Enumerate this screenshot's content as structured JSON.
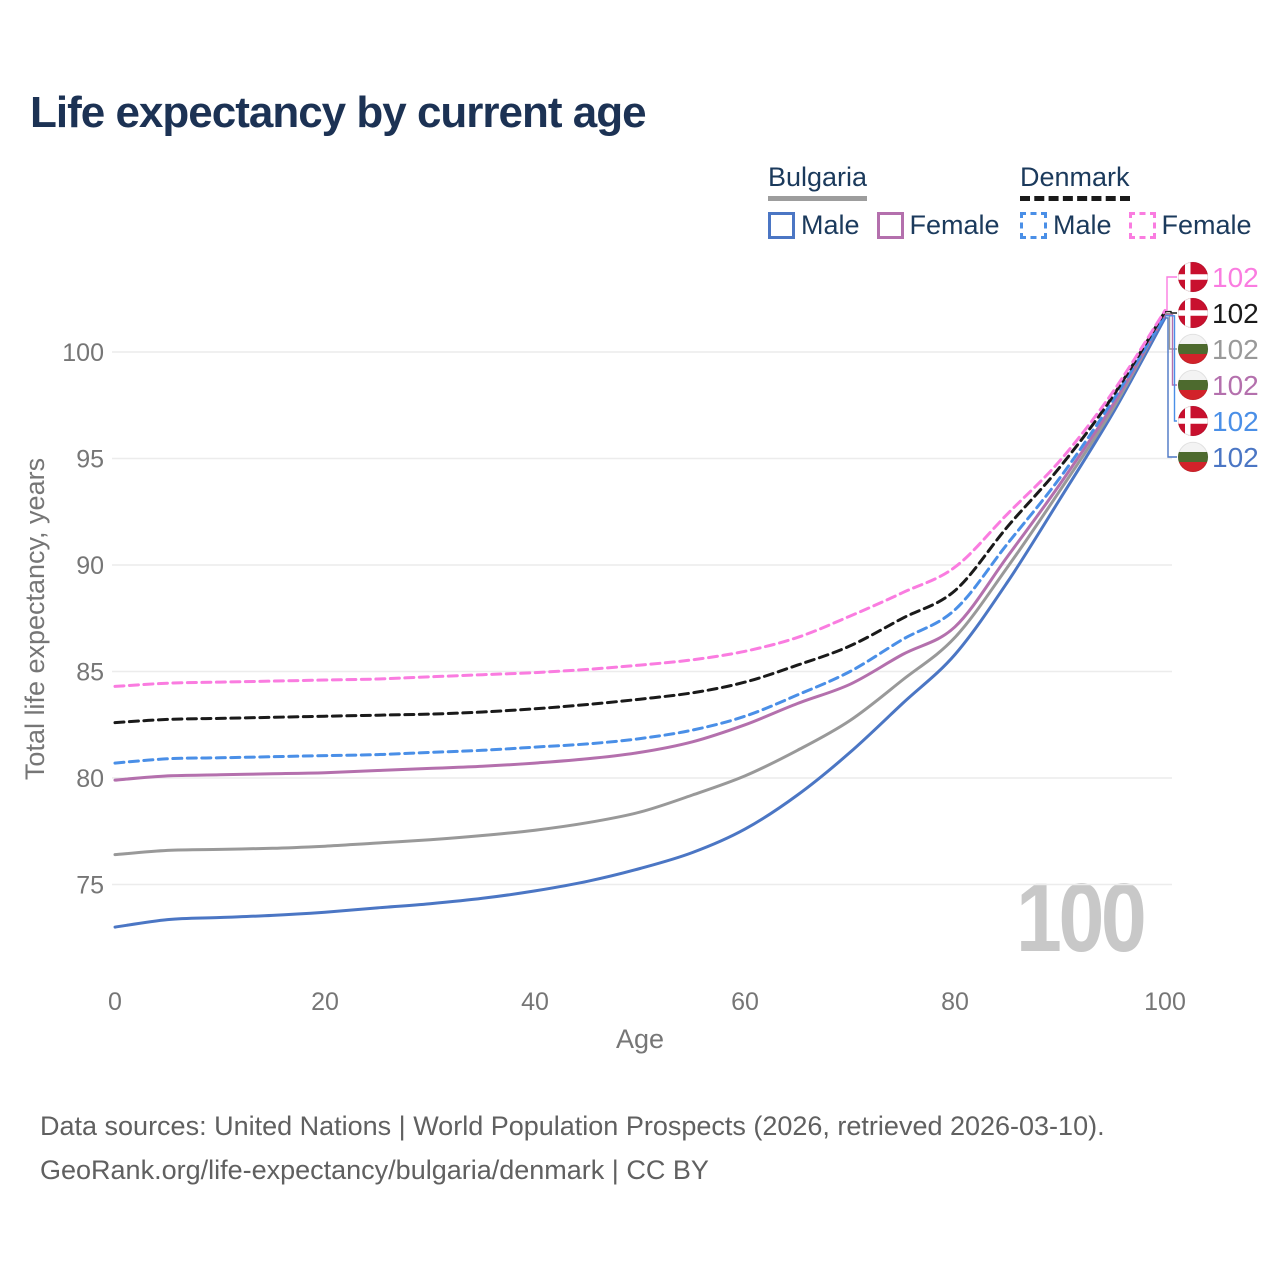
{
  "title": "Life expectancy by current age",
  "legend": {
    "groups": [
      {
        "name": "Bulgaria",
        "line_style": "solid",
        "underline_color": "#9d9d9d",
        "items": [
          {
            "label": "Male",
            "color": "#4b76c4"
          },
          {
            "label": "Female",
            "color": "#b470ad"
          }
        ]
      },
      {
        "name": "Denmark",
        "line_style": "dashed",
        "underline_color": "#1a1a1a",
        "items": [
          {
            "label": "Male",
            "color": "#4a8fe7"
          },
          {
            "label": "Female",
            "color": "#fa7ce0"
          }
        ]
      }
    ]
  },
  "chart_data": {
    "type": "line",
    "xlabel": "Age",
    "ylabel": "Total life expectancy, years",
    "x": [
      0,
      5,
      10,
      15,
      20,
      25,
      30,
      35,
      40,
      45,
      50,
      55,
      60,
      65,
      70,
      75,
      80,
      85,
      90,
      95,
      100
    ],
    "xticks": [
      0,
      20,
      40,
      60,
      80,
      100
    ],
    "yticks": [
      75,
      80,
      85,
      90,
      95,
      100
    ],
    "xlim": [
      0,
      100
    ],
    "ylim": [
      72,
      103
    ],
    "grid": "horizontal",
    "legend_position": "top-right",
    "watermark": "100",
    "series": [
      {
        "name": "Bulgaria Male",
        "country": "bulgaria",
        "sex": "male",
        "color": "#4b76c4",
        "dashed": false,
        "end_label": "102",
        "label_row": 5,
        "values": [
          73.0,
          73.35,
          73.45,
          73.55,
          73.7,
          73.9,
          74.1,
          74.35,
          74.7,
          75.15,
          75.75,
          76.5,
          77.6,
          79.2,
          81.2,
          83.5,
          85.8,
          89.2,
          93.1,
          97.1,
          101.6
        ]
      },
      {
        "name": "Bulgaria Both sexes",
        "country": "bulgaria",
        "sex": "both",
        "color": "#999999",
        "dashed": false,
        "end_label": "102",
        "label_row": 2,
        "values": [
          76.4,
          76.6,
          76.65,
          76.7,
          76.8,
          76.95,
          77.1,
          77.3,
          77.55,
          77.9,
          78.4,
          79.2,
          80.1,
          81.3,
          82.7,
          84.6,
          86.6,
          89.9,
          93.5,
          97.3,
          101.8
        ]
      },
      {
        "name": "Bulgaria Female",
        "country": "bulgaria",
        "sex": "female",
        "color": "#b470ad",
        "dashed": false,
        "end_label": "102",
        "label_row": 3,
        "values": [
          79.9,
          80.1,
          80.15,
          80.2,
          80.25,
          80.35,
          80.45,
          80.55,
          80.7,
          80.9,
          81.2,
          81.7,
          82.5,
          83.5,
          84.4,
          85.8,
          87.1,
          90.4,
          93.8,
          97.5,
          101.75
        ]
      },
      {
        "name": "Denmark Male",
        "country": "denmark",
        "sex": "male",
        "color": "#4a8fe7",
        "dashed": true,
        "end_label": "102",
        "label_row": 4,
        "values": [
          80.7,
          80.9,
          80.95,
          81.0,
          81.05,
          81.1,
          81.2,
          81.3,
          81.45,
          81.6,
          81.85,
          82.25,
          82.9,
          83.9,
          85.0,
          86.5,
          87.9,
          91.0,
          94.1,
          97.7,
          101.7
        ]
      },
      {
        "name": "Denmark Both sexes",
        "country": "denmark",
        "sex": "both",
        "color": "#1a1a1a",
        "dashed": true,
        "end_label": "102",
        "label_row": 1,
        "values": [
          82.6,
          82.75,
          82.8,
          82.85,
          82.9,
          82.95,
          83.0,
          83.1,
          83.25,
          83.45,
          83.7,
          84.0,
          84.5,
          85.3,
          86.2,
          87.5,
          88.8,
          91.8,
          94.6,
          97.9,
          101.9
        ]
      },
      {
        "name": "Denmark Female",
        "country": "denmark",
        "sex": "female",
        "color": "#fa7ce0",
        "dashed": true,
        "end_label": "102",
        "label_row": 0,
        "values": [
          84.3,
          84.45,
          84.5,
          84.55,
          84.6,
          84.65,
          84.75,
          84.85,
          84.95,
          85.1,
          85.3,
          85.55,
          85.95,
          86.6,
          87.6,
          88.7,
          89.9,
          92.4,
          94.9,
          98.1,
          101.95
        ]
      }
    ],
    "flag_colors": {
      "denmark": {
        "base": "#c8102e",
        "cross": "#ffffff"
      },
      "bulgaria": {
        "top": "#f3f3f3",
        "middle": "#4d6a2e",
        "bottom": "#d2222a"
      }
    },
    "gridline_color": "#ececec",
    "tick_color": "#767676"
  },
  "footer": {
    "line1": "Data sources: United Nations | World Population Prospects (2026, retrieved 2026-03-10).",
    "line2": "GeoRank.org/life-expectancy/bulgaria/denmark | CC BY"
  }
}
